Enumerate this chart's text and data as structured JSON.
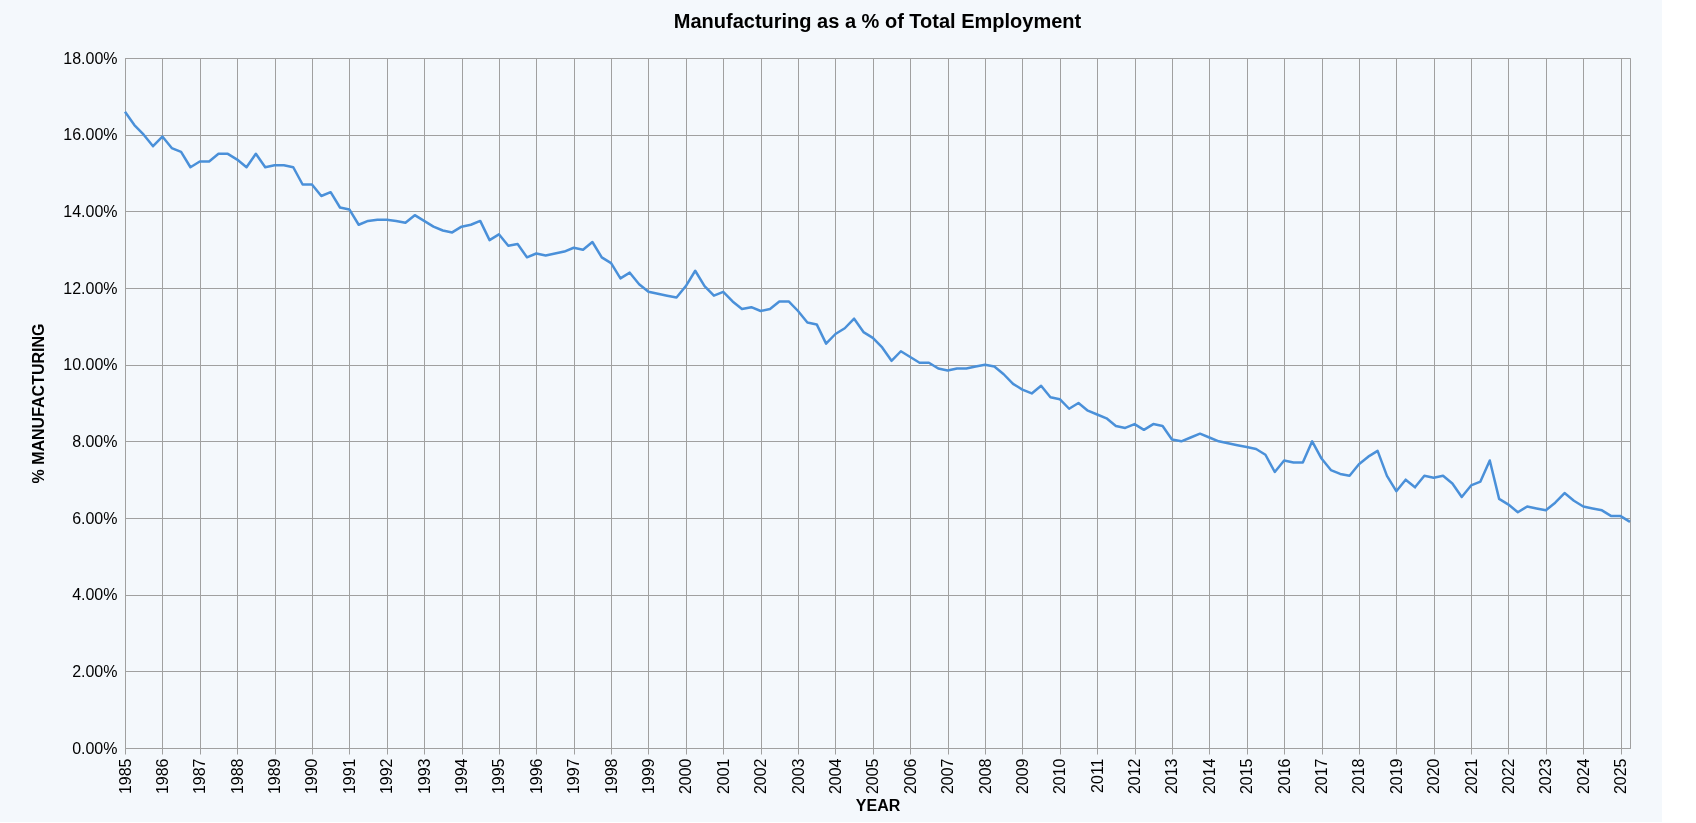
{
  "chart_data": {
    "type": "line",
    "title": "Manufacturing as a % of Total Employment",
    "xlabel": "YEAR",
    "ylabel": "%  MANUFACTURING",
    "x": [
      1985,
      1985.25,
      1985.5,
      1985.75,
      1986,
      1986.25,
      1986.5,
      1986.75,
      1987,
      1987.25,
      1987.5,
      1987.75,
      1988,
      1988.25,
      1988.5,
      1988.75,
      1989,
      1989.25,
      1989.5,
      1989.75,
      1990,
      1990.25,
      1990.5,
      1990.75,
      1991,
      1991.25,
      1991.5,
      1991.75,
      1992,
      1992.25,
      1992.5,
      1992.75,
      1993,
      1993.25,
      1993.5,
      1993.75,
      1994,
      1994.25,
      1994.5,
      1994.75,
      1995,
      1995.25,
      1995.5,
      1995.75,
      1996,
      1996.25,
      1996.5,
      1996.75,
      1997,
      1997.25,
      1997.5,
      1997.75,
      1998,
      1998.25,
      1998.5,
      1998.75,
      1999,
      1999.25,
      1999.5,
      1999.75,
      2000,
      2000.25,
      2000.5,
      2000.75,
      2001,
      2001.25,
      2001.5,
      2001.75,
      2002,
      2002.25,
      2002.5,
      2002.75,
      2003,
      2003.25,
      2003.5,
      2003.75,
      2004,
      2004.25,
      2004.5,
      2004.75,
      2005,
      2005.25,
      2005.5,
      2005.75,
      2006,
      2006.25,
      2006.5,
      2006.75,
      2007,
      2007.25,
      2007.5,
      2007.75,
      2008,
      2008.25,
      2008.5,
      2008.75,
      2009,
      2009.25,
      2009.5,
      2009.75,
      2010,
      2010.25,
      2010.5,
      2010.75,
      2011,
      2011.25,
      2011.5,
      2011.75,
      2012,
      2012.25,
      2012.5,
      2012.75,
      2013,
      2013.25,
      2013.5,
      2013.75,
      2014,
      2014.25,
      2014.5,
      2014.75,
      2015,
      2015.25,
      2015.5,
      2015.75,
      2016,
      2016.25,
      2016.5,
      2016.75,
      2017,
      2017.25,
      2017.5,
      2017.75,
      2018,
      2018.25,
      2018.5,
      2018.75,
      2019,
      2019.25,
      2019.5,
      2019.75,
      2020,
      2020.25,
      2020.5,
      2020.75,
      2021,
      2021.25,
      2021.5,
      2021.75,
      2022,
      2022.25,
      2022.5,
      2022.75,
      2023,
      2023.25,
      2023.5,
      2023.75,
      2024,
      2024.25,
      2024.5,
      2024.75,
      2025,
      2025.25
    ],
    "series": [
      {
        "color": "#4a90d9",
        "values": [
          16.6,
          16.25,
          16.0,
          15.7,
          15.95,
          15.65,
          15.55,
          15.15,
          15.3,
          15.3,
          15.5,
          15.5,
          15.35,
          15.15,
          15.5,
          15.15,
          15.2,
          15.2,
          15.15,
          14.7,
          14.7,
          14.4,
          14.5,
          14.1,
          14.05,
          13.65,
          13.75,
          13.78,
          13.78,
          13.75,
          13.7,
          13.9,
          13.75,
          13.6,
          13.5,
          13.45,
          13.6,
          13.65,
          13.75,
          13.25,
          13.4,
          13.1,
          13.15,
          12.8,
          12.9,
          12.85,
          12.9,
          12.95,
          13.05,
          13.0,
          13.2,
          12.8,
          12.65,
          12.25,
          12.4,
          12.1,
          11.9,
          11.85,
          11.8,
          11.75,
          12.05,
          12.45,
          12.05,
          11.8,
          11.9,
          11.65,
          11.45,
          11.5,
          11.4,
          11.45,
          11.65,
          11.65,
          11.4,
          11.1,
          11.05,
          10.55,
          10.8,
          10.95,
          11.2,
          10.85,
          10.7,
          10.45,
          10.1,
          10.35,
          10.2,
          10.05,
          10.05,
          9.9,
          9.85,
          9.9,
          9.9,
          9.95,
          10.0,
          9.95,
          9.75,
          9.5,
          9.35,
          9.25,
          9.45,
          9.15,
          9.1,
          8.85,
          9.0,
          8.8,
          8.7,
          8.6,
          8.4,
          8.35,
          8.45,
          8.3,
          8.45,
          8.4,
          8.05,
          8.0,
          8.1,
          8.2,
          8.1,
          8.0,
          7.95,
          7.9,
          7.85,
          7.8,
          7.65,
          7.2,
          7.5,
          7.45,
          7.45,
          8.0,
          7.55,
          7.25,
          7.15,
          7.1,
          7.4,
          7.6,
          7.75,
          7.1,
          6.7,
          7.0,
          6.8,
          7.1,
          7.05,
          7.1,
          6.9,
          6.55,
          6.85,
          6.95,
          7.5,
          6.5,
          6.35,
          6.15,
          6.3,
          6.25,
          6.2,
          6.4,
          6.65,
          6.45,
          6.3,
          6.25,
          6.2,
          6.05,
          6.05,
          5.9
        ]
      }
    ],
    "xlim": [
      1985,
      2025.25
    ],
    "xticks": [
      1985,
      1986,
      1987,
      1988,
      1989,
      1990,
      1991,
      1992,
      1993,
      1994,
      1995,
      1996,
      1997,
      1998,
      1999,
      2000,
      2001,
      2002,
      2003,
      2004,
      2005,
      2006,
      2007,
      2008,
      2009,
      2010,
      2011,
      2012,
      2013,
      2014,
      2015,
      2016,
      2017,
      2018,
      2019,
      2020,
      2021,
      2022,
      2023,
      2024,
      2025
    ],
    "ylim": [
      0,
      18
    ],
    "yticks": [
      {
        "value": 0,
        "label": "0.00%"
      },
      {
        "value": 2,
        "label": "2.00%"
      },
      {
        "value": 4,
        "label": "4.00%"
      },
      {
        "value": 6,
        "label": "6.00%"
      },
      {
        "value": 8,
        "label": "8.00%"
      },
      {
        "value": 10,
        "label": "10.00%"
      },
      {
        "value": 12,
        "label": "12.00%"
      },
      {
        "value": 14,
        "label": "14.00%"
      },
      {
        "value": 16,
        "label": "16.00%"
      },
      {
        "value": 18,
        "label": "18.00%"
      }
    ],
    "grid": true,
    "marker": "none",
    "line_style": "solid"
  }
}
